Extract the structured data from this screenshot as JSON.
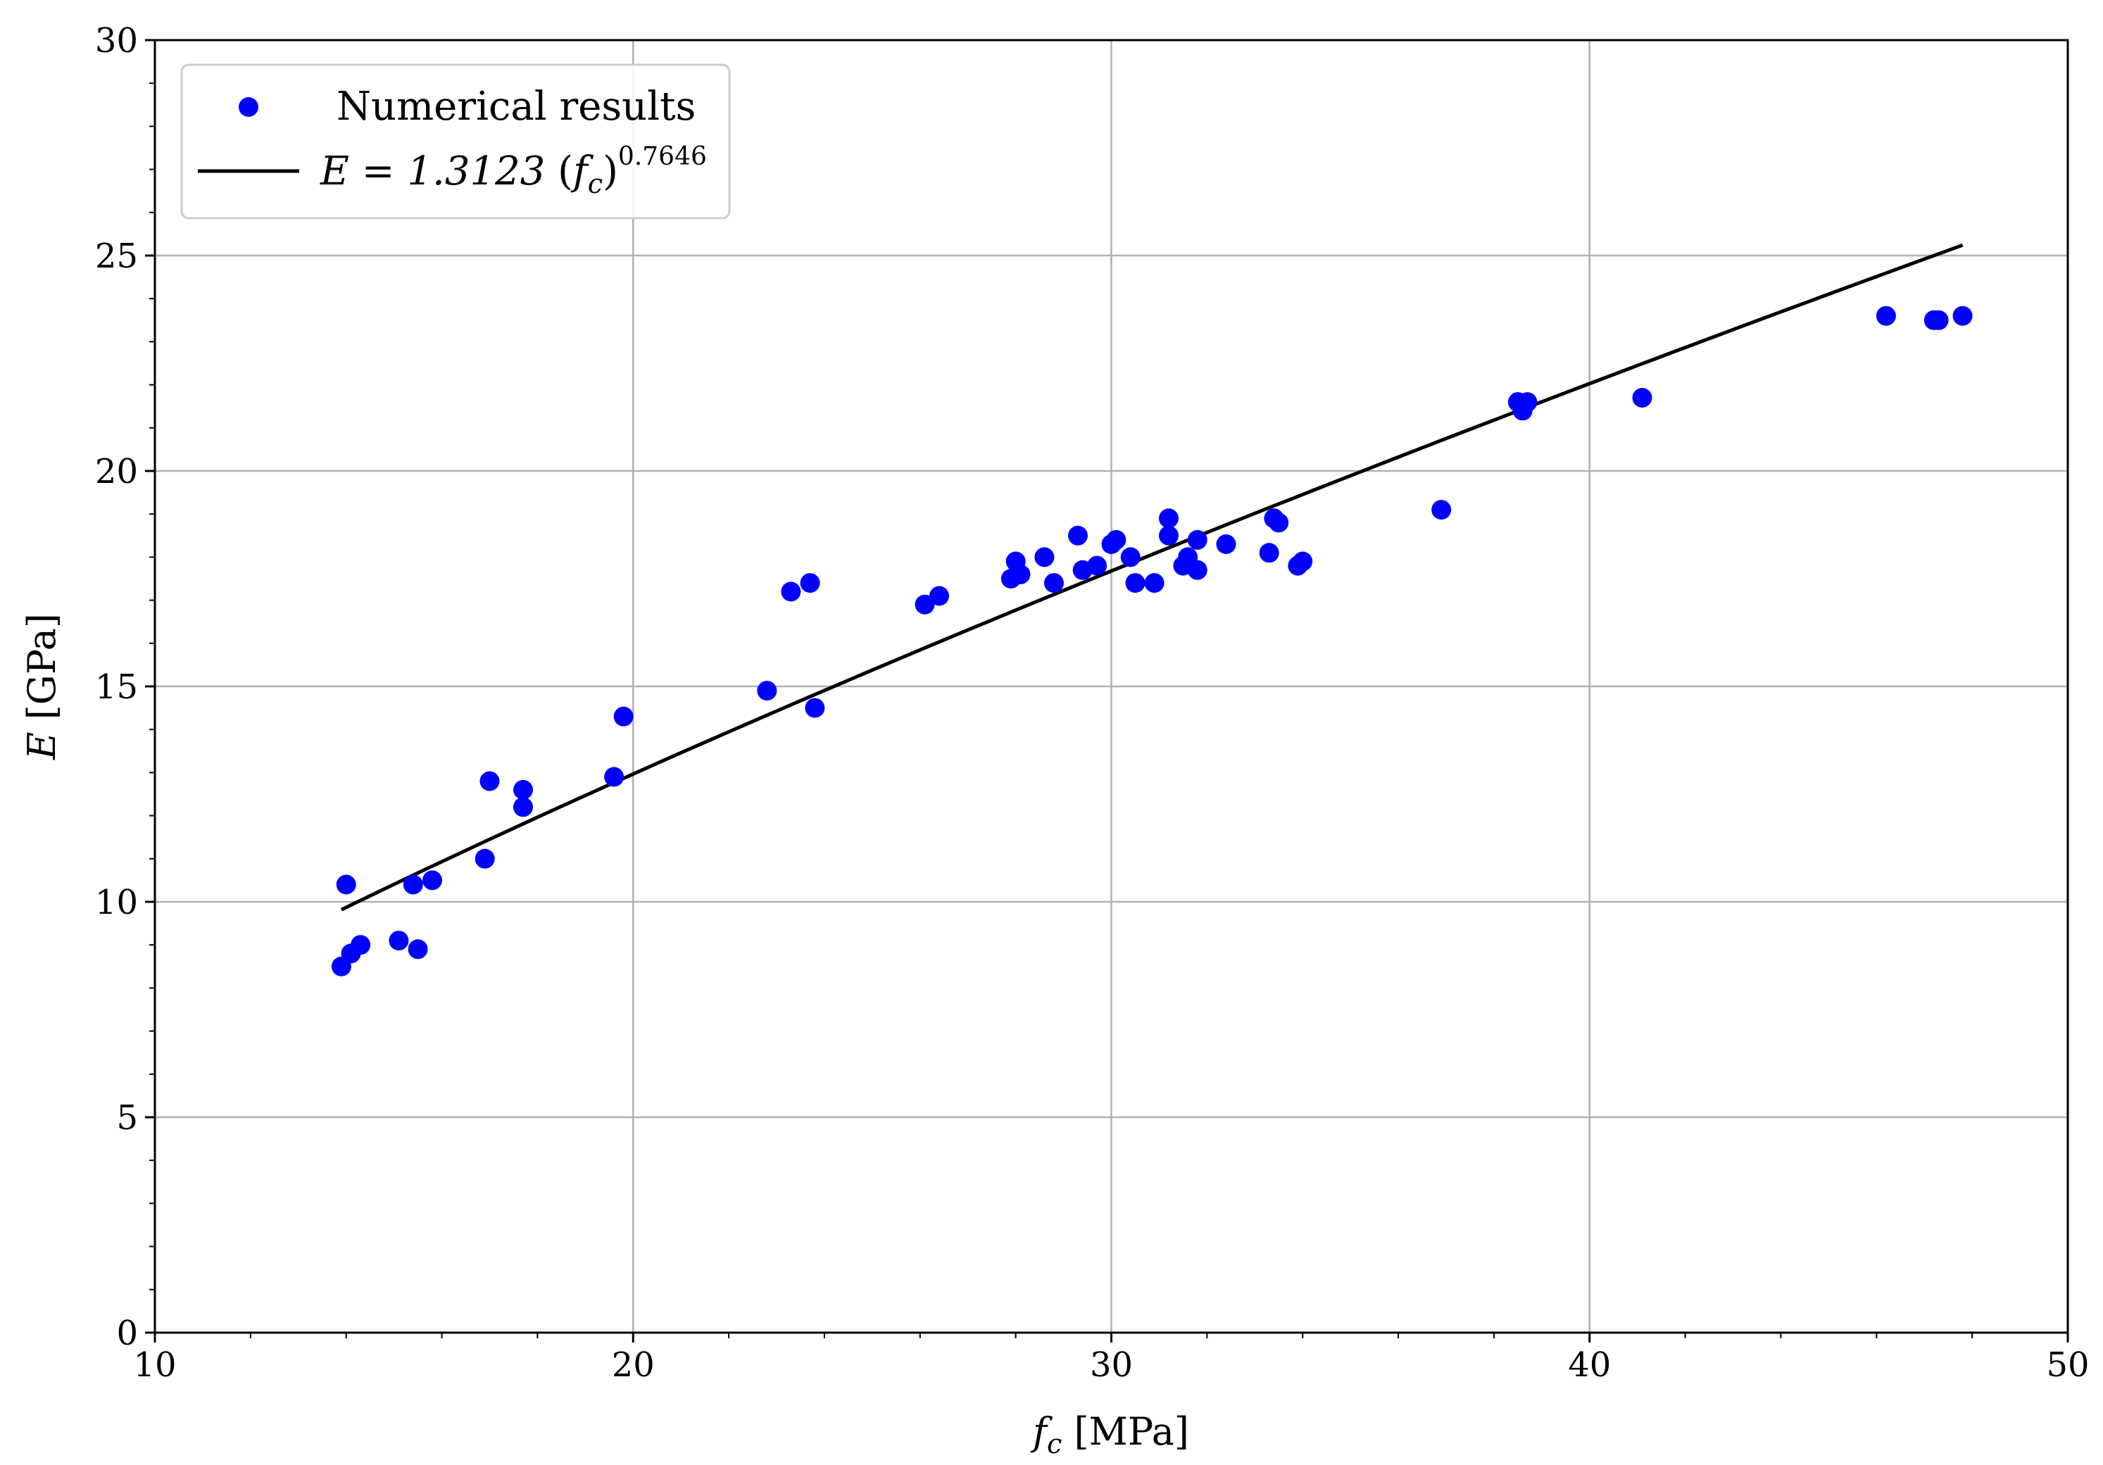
{
  "chart_data": {
    "type": "scatter",
    "xlabel": {
      "symbol": "f",
      "subscript": "c",
      "unit": "[MPa]"
    },
    "ylabel": {
      "symbol": "E",
      "unit": "[GPa]"
    },
    "xlim": [
      10,
      50
    ],
    "ylim": [
      0,
      30
    ],
    "xticks": [
      "10",
      "20",
      "30",
      "40",
      "50"
    ],
    "yticks": [
      "0",
      "5",
      "10",
      "15",
      "20",
      "25",
      "30"
    ],
    "grid": true,
    "legend_position": "top-left",
    "colors": {
      "points": "#0000ff",
      "fit": "#000000"
    },
    "series": [
      {
        "name": "Numerical results",
        "kind": "scatter",
        "points": [
          [
            13.9,
            8.5
          ],
          [
            14.1,
            8.8
          ],
          [
            14.3,
            9.0
          ],
          [
            14.0,
            10.4
          ],
          [
            15.1,
            9.1
          ],
          [
            15.5,
            8.9
          ],
          [
            15.4,
            10.4
          ],
          [
            15.8,
            10.5
          ],
          [
            16.9,
            11.0
          ],
          [
            17.0,
            12.8
          ],
          [
            17.7,
            12.2
          ],
          [
            17.7,
            12.6
          ],
          [
            19.6,
            12.9
          ],
          [
            19.8,
            14.3
          ],
          [
            22.8,
            14.9
          ],
          [
            23.3,
            17.2
          ],
          [
            23.7,
            17.4
          ],
          [
            23.8,
            14.5
          ],
          [
            26.1,
            16.9
          ],
          [
            26.4,
            17.1
          ],
          [
            27.9,
            17.5
          ],
          [
            28.0,
            17.9
          ],
          [
            28.1,
            17.6
          ],
          [
            28.6,
            18.0
          ],
          [
            28.8,
            17.4
          ],
          [
            29.3,
            18.5
          ],
          [
            29.4,
            17.7
          ],
          [
            29.7,
            17.8
          ],
          [
            30.0,
            18.3
          ],
          [
            30.1,
            18.4
          ],
          [
            30.4,
            18.0
          ],
          [
            30.5,
            17.4
          ],
          [
            30.9,
            17.4
          ],
          [
            31.2,
            18.9
          ],
          [
            31.2,
            18.5
          ],
          [
            31.5,
            17.8
          ],
          [
            31.6,
            18.0
          ],
          [
            31.8,
            18.4
          ],
          [
            31.8,
            17.7
          ],
          [
            32.4,
            18.3
          ],
          [
            33.3,
            18.1
          ],
          [
            33.4,
            18.9
          ],
          [
            33.5,
            18.8
          ],
          [
            33.9,
            17.8
          ],
          [
            34.0,
            17.9
          ],
          [
            36.9,
            19.1
          ],
          [
            38.5,
            21.6
          ],
          [
            38.6,
            21.4
          ],
          [
            38.7,
            21.6
          ],
          [
            41.1,
            21.7
          ],
          [
            46.2,
            23.6
          ],
          [
            47.2,
            23.5
          ],
          [
            47.3,
            23.5
          ],
          [
            47.8,
            23.6
          ]
        ]
      },
      {
        "kind": "line",
        "equation": {
          "lhs": "E = 1.3123",
          "base": "f",
          "base_sub": "c",
          "exponent": "0.7646"
        },
        "coefficient": 1.3123,
        "exponent_value": 0.7646,
        "x_range": [
          13.9,
          47.8
        ]
      }
    ],
    "legend": [
      {
        "label": "Numerical results",
        "marker": "dot"
      },
      {
        "label_parts": {
          "lhs": "E = 1.3123",
          "open": "(",
          "base": "f",
          "sub": "c",
          "close": ")",
          "exp": "0.7646"
        },
        "marker": "line"
      }
    ]
  }
}
